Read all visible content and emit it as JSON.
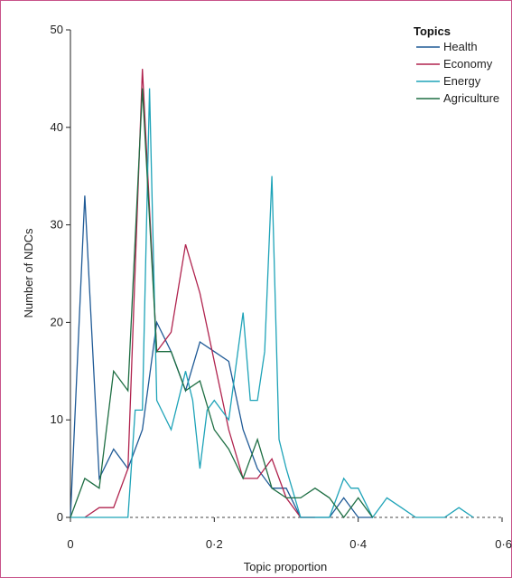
{
  "chart_data": {
    "type": "line",
    "xlabel": "Topic proportion",
    "ylabel": "Number of NDCs",
    "xlim": [
      0,
      0.6
    ],
    "ylim": [
      0,
      50
    ],
    "x_ticks": [
      0,
      0.2,
      0.4,
      0.6
    ],
    "x_tick_labels": [
      "0",
      "0·2",
      "0·4",
      "0·6"
    ],
    "y_ticks": [
      0,
      10,
      20,
      30,
      40,
      50
    ],
    "y_tick_labels": [
      "0",
      "10",
      "20",
      "30",
      "40",
      "50"
    ],
    "baseline": 0,
    "grid": false,
    "legend": {
      "title": "Topics",
      "placement": "top-right"
    },
    "series": [
      {
        "name": "Health",
        "color": "#1f5a96",
        "x": [
          0,
          0.02,
          0.04,
          0.06,
          0.08,
          0.1,
          0.12,
          0.14,
          0.16,
          0.18,
          0.2,
          0.22,
          0.24,
          0.26,
          0.28,
          0.3,
          0.32,
          0.34,
          0.36,
          0.38,
          0.4,
          0.42
        ],
        "y": [
          0,
          33,
          4,
          7,
          5,
          9,
          20,
          17,
          13,
          18,
          17,
          16,
          9,
          5,
          3,
          3,
          0,
          0,
          0,
          2,
          0,
          0
        ]
      },
      {
        "name": "Economy",
        "color": "#b0234e",
        "x": [
          0.02,
          0.04,
          0.06,
          0.08,
          0.1,
          0.12,
          0.14,
          0.16,
          0.18,
          0.2,
          0.22,
          0.24,
          0.26,
          0.28,
          0.3,
          0.32,
          0.34
        ],
        "y": [
          0,
          1,
          1,
          5,
          46,
          17,
          19,
          28,
          23,
          16,
          9,
          4,
          4,
          6,
          2,
          0,
          0
        ]
      },
      {
        "name": "Energy",
        "color": "#1ea3b8",
        "x": [
          0,
          0.02,
          0.04,
          0.06,
          0.08,
          0.09,
          0.1,
          0.11,
          0.12,
          0.14,
          0.16,
          0.17,
          0.18,
          0.19,
          0.2,
          0.22,
          0.24,
          0.25,
          0.26,
          0.27,
          0.28,
          0.29,
          0.3,
          0.32,
          0.34,
          0.36,
          0.38,
          0.39,
          0.4,
          0.42,
          0.44,
          0.46,
          0.48,
          0.5,
          0.52,
          0.54,
          0.56
        ],
        "y": [
          0,
          0,
          0,
          0,
          0,
          11,
          11,
          44,
          12,
          9,
          15,
          12,
          5,
          11,
          12,
          10,
          21,
          12,
          12,
          17,
          35,
          8,
          5,
          0,
          0,
          0,
          4,
          3,
          3,
          0,
          2,
          1,
          0,
          0,
          0,
          1,
          0
        ]
      },
      {
        "name": "Agriculture",
        "color": "#1e6e43",
        "x": [
          0,
          0.02,
          0.04,
          0.06,
          0.08,
          0.1,
          0.12,
          0.14,
          0.16,
          0.18,
          0.2,
          0.22,
          0.24,
          0.26,
          0.28,
          0.3,
          0.32,
          0.34,
          0.36,
          0.38,
          0.4,
          0.42
        ],
        "y": [
          0,
          4,
          3,
          15,
          13,
          44,
          17,
          17,
          13,
          14,
          9,
          7,
          4,
          8,
          3,
          2,
          2,
          3,
          2,
          0,
          2,
          0
        ]
      }
    ]
  }
}
